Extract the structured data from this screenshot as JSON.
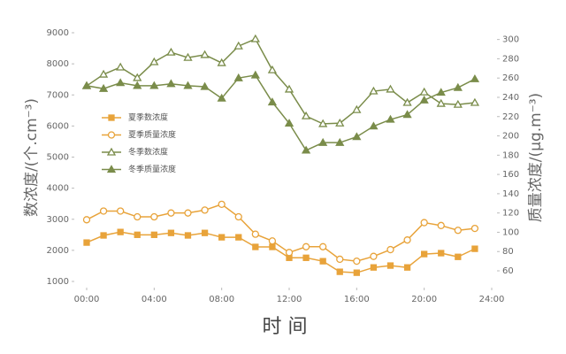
{
  "chart_data": {
    "type": "line",
    "x_label": "时 间",
    "y_label": "数浓度/(个.cm⁻³)",
    "y2_label": "质量浓度/(μg.m⁻³)",
    "x": [
      0,
      1,
      2,
      3,
      4,
      5,
      6,
      7,
      8,
      9,
      10,
      11,
      12,
      13,
      14,
      15,
      16,
      17,
      18,
      19,
      20,
      21,
      22,
      23
    ],
    "xlim": [
      0,
      24
    ],
    "xticks": [
      {
        "value": 0,
        "label": "00:00"
      },
      {
        "value": 4,
        "label": "04:00"
      },
      {
        "value": 8,
        "label": "08:00"
      },
      {
        "value": 12,
        "label": "12:00"
      },
      {
        "value": 16,
        "label": "16:00"
      },
      {
        "value": 20,
        "label": "20:00"
      },
      {
        "value": 24,
        "label": "24:00"
      }
    ],
    "ylim": [
      1000,
      9000
    ],
    "yticks": [
      1000,
      2000,
      3000,
      4000,
      5000,
      6000,
      7000,
      8000,
      9000
    ],
    "y2lim": [
      49,
      307
    ],
    "y2ticks": [
      60,
      80,
      100,
      120,
      140,
      160,
      180,
      200,
      220,
      240,
      260,
      280,
      300
    ],
    "legend": "upper left",
    "series": [
      {
        "name": "夏季数浓度",
        "color": "#e8a33a",
        "marker": "square",
        "fill": "solid",
        "axis": "y",
        "values": [
          2250,
          2480,
          2590,
          2500,
          2500,
          2560,
          2480,
          2560,
          2420,
          2420,
          2110,
          2110,
          1760,
          1760,
          1650,
          1310,
          1280,
          1450,
          1510,
          1450,
          1880,
          1910,
          1790,
          2050
        ]
      },
      {
        "name": "夏季质量浓度",
        "color": "#e8a33a",
        "marker": "circle",
        "fill": "open",
        "axis": "y2",
        "values": [
          113,
          122,
          122,
          116,
          116,
          120,
          120,
          123,
          129,
          116,
          98,
          91,
          79,
          85,
          85,
          72,
          70,
          75,
          82,
          92,
          110,
          107,
          102,
          104
        ]
      },
      {
        "name": "冬季数浓度",
        "color": "#7a8c4a",
        "marker": "triangle",
        "fill": "open",
        "axis": "y",
        "values": [
          7290,
          7660,
          7890,
          7550,
          8060,
          8370,
          8200,
          8290,
          8030,
          8570,
          8800,
          7800,
          7180,
          6320,
          6070,
          6090,
          6520,
          7120,
          7180,
          6750,
          7090,
          6720,
          6690,
          6750
        ]
      },
      {
        "name": "冬季质量浓度",
        "color": "#7a8c4a",
        "marker": "triangle",
        "fill": "solid",
        "axis": "y2",
        "values": [
          252,
          249,
          255,
          252,
          252,
          254,
          252,
          251,
          239,
          260,
          263,
          235,
          213,
          185,
          193,
          193,
          199,
          210,
          217,
          222,
          237,
          245,
          250,
          259
        ]
      }
    ]
  }
}
